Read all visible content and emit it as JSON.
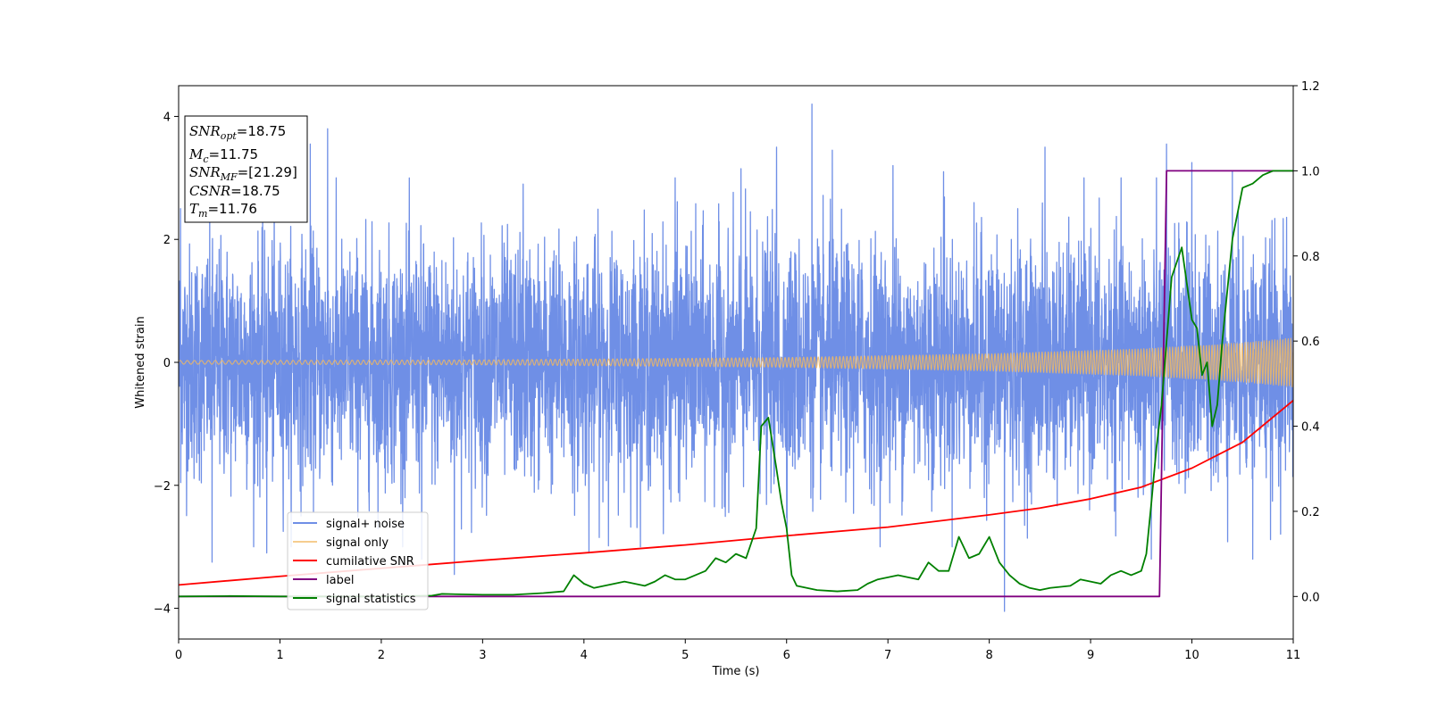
{
  "chart_data": {
    "type": "line",
    "title": "",
    "xlabel": "Time (s)",
    "ylabel": "Whitened strain",
    "xlim": [
      0,
      11
    ],
    "ylim": [
      -4.5,
      4.5
    ],
    "y2lim": [
      -0.1,
      1.2
    ],
    "x_ticks": [
      0,
      1,
      2,
      3,
      4,
      5,
      6,
      7,
      8,
      9,
      10,
      11
    ],
    "y_ticks": [
      -4,
      -2,
      0,
      2,
      4
    ],
    "y2_ticks": [
      "0.0",
      "0.2",
      "0.4",
      "0.6",
      "0.8",
      "1.0",
      "1.2"
    ],
    "grid": false,
    "legend_placement": "lower-left",
    "annotation": {
      "lines": [
        {
          "var": "SNR",
          "sub": "opt",
          "value": "=18.75"
        },
        {
          "var": "M",
          "sub": "c",
          "value": "=11.75"
        },
        {
          "var": "SNR",
          "sub": "MF",
          "value": "=[21.29]"
        },
        {
          "var": "CSNR",
          "sub": "",
          "value": "=18.75"
        },
        {
          "var": "T",
          "sub": "m",
          "value": "=11.76"
        }
      ]
    },
    "series": [
      {
        "name": "signal+ noise",
        "axis": "left",
        "color": "#6f8fe6",
        "kind": "noise",
        "sigma": 0.95,
        "extremes": [
          {
            "x": 0.02,
            "y": 2.5
          },
          {
            "x": 0.33,
            "y": -3.25
          },
          {
            "x": 0.87,
            "y": -3.1
          },
          {
            "x": 1.3,
            "y": 3.55
          },
          {
            "x": 1.47,
            "y": 3.8
          },
          {
            "x": 2.4,
            "y": -3.2
          },
          {
            "x": 2.72,
            "y": -3.45
          },
          {
            "x": 3.4,
            "y": 2.9
          },
          {
            "x": 4.05,
            "y": -3.1
          },
          {
            "x": 4.9,
            "y": 3.0
          },
          {
            "x": 5.55,
            "y": 3.15
          },
          {
            "x": 5.9,
            "y": 3.5
          },
          {
            "x": 6.25,
            "y": 4.2
          },
          {
            "x": 6.45,
            "y": 3.45
          },
          {
            "x": 7.05,
            "y": 3.2
          },
          {
            "x": 7.55,
            "y": 3.1
          },
          {
            "x": 8.15,
            "y": -4.05
          },
          {
            "x": 8.55,
            "y": 3.5
          },
          {
            "x": 9.6,
            "y": -3.2
          },
          {
            "x": 9.75,
            "y": 3.55
          },
          {
            "x": 10.0,
            "y": 3.25
          },
          {
            "x": 10.4,
            "y": 3.1
          },
          {
            "x": 10.6,
            "y": -3.2
          }
        ]
      },
      {
        "name": "signal only",
        "axis": "left",
        "color": "#f2b860",
        "kind": "chirp",
        "envelope": [
          {
            "x": 0,
            "y": 0.03
          },
          {
            "x": 3,
            "y": 0.04
          },
          {
            "x": 6,
            "y": 0.08
          },
          {
            "x": 8,
            "y": 0.14
          },
          {
            "x": 9.5,
            "y": 0.22
          },
          {
            "x": 10.5,
            "y": 0.32
          },
          {
            "x": 11,
            "y": 0.4
          }
        ]
      },
      {
        "name": "cumilative SNR",
        "axis": "left",
        "color": "#ff0000",
        "x": [
          0,
          1,
          2,
          3,
          4,
          5,
          6,
          7,
          8,
          8.5,
          9,
          9.5,
          10,
          10.5,
          11
        ],
        "y": [
          -3.62,
          -3.48,
          -3.35,
          -3.22,
          -3.1,
          -2.97,
          -2.82,
          -2.68,
          -2.48,
          -2.37,
          -2.22,
          -2.03,
          -1.72,
          -1.3,
          -0.62
        ]
      },
      {
        "name": "label",
        "axis": "right",
        "color": "#800080",
        "x": [
          0,
          9.68,
          9.75,
          11
        ],
        "y": [
          0,
          0,
          1,
          1
        ]
      },
      {
        "name": "signal statistics",
        "axis": "right",
        "color": "#008000",
        "x": [
          0,
          0.5,
          1,
          1.5,
          2,
          2.5,
          2.6,
          3,
          3.3,
          3.6,
          3.8,
          3.9,
          4.0,
          4.1,
          4.3,
          4.4,
          4.6,
          4.7,
          4.8,
          4.9,
          5.0,
          5.2,
          5.3,
          5.4,
          5.5,
          5.6,
          5.7,
          5.75,
          5.82,
          5.9,
          5.95,
          6.0,
          6.05,
          6.1,
          6.3,
          6.5,
          6.7,
          6.8,
          6.9,
          7.0,
          7.1,
          7.2,
          7.3,
          7.4,
          7.5,
          7.6,
          7.7,
          7.8,
          7.9,
          8.0,
          8.1,
          8.2,
          8.3,
          8.4,
          8.5,
          8.6,
          8.8,
          8.9,
          9.0,
          9.1,
          9.2,
          9.3,
          9.4,
          9.5,
          9.55,
          9.6,
          9.65,
          9.7,
          9.8,
          9.9,
          10.0,
          10.05,
          10.1,
          10.15,
          10.2,
          10.25,
          10.3,
          10.4,
          10.5,
          10.6,
          10.7,
          10.8,
          11
        ],
        "y": [
          0,
          0.001,
          0,
          0,
          0,
          0.002,
          0.006,
          0.004,
          0.004,
          0.008,
          0.012,
          0.05,
          0.03,
          0.02,
          0.03,
          0.035,
          0.025,
          0.035,
          0.05,
          0.04,
          0.04,
          0.06,
          0.09,
          0.08,
          0.1,
          0.09,
          0.16,
          0.4,
          0.42,
          0.3,
          0.22,
          0.16,
          0.05,
          0.025,
          0.015,
          0.012,
          0.015,
          0.03,
          0.04,
          0.045,
          0.05,
          0.045,
          0.04,
          0.08,
          0.06,
          0.06,
          0.14,
          0.09,
          0.1,
          0.14,
          0.08,
          0.05,
          0.03,
          0.02,
          0.015,
          0.02,
          0.025,
          0.04,
          0.035,
          0.03,
          0.05,
          0.06,
          0.05,
          0.06,
          0.1,
          0.22,
          0.35,
          0.45,
          0.75,
          0.82,
          0.65,
          0.63,
          0.52,
          0.55,
          0.4,
          0.45,
          0.6,
          0.84,
          0.96,
          0.97,
          0.99,
          1.0,
          1.0
        ]
      }
    ]
  }
}
